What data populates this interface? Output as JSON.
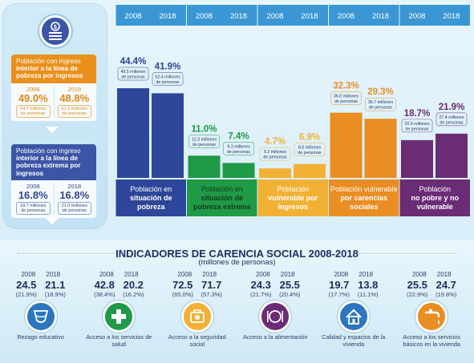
{
  "colors": {
    "dark_blue": "#2d4699",
    "green": "#1f9a46",
    "yellow": "#f2b134",
    "orange": "#ea8d22",
    "purple": "#6b2c76",
    "year_strip": "#3a97d3"
  },
  "summary_boxes": [
    {
      "color": "orange",
      "title_first": "Población con ingreso",
      "title_rest": "interior a la línea de pobreza por ingresos",
      "years": [
        "2008",
        "2018"
      ],
      "values": [
        "49.0%",
        "48.8%"
      ],
      "subs": [
        "54.7 millones de personas",
        "61.1 millones de personas"
      ]
    },
    {
      "color": "blue",
      "title_first": "Población con ingreso",
      "title_rest": "interior a la línea de pobreza extrema por ingresos",
      "years": [
        "2008",
        "2018"
      ],
      "values": [
        "16.8%",
        "16.8%"
      ],
      "subs": [
        "18.7 millones de personas",
        "21.0 millones de personas"
      ]
    }
  ],
  "chart_data": {
    "type": "bar",
    "unit": "%",
    "years": [
      "2008",
      "2018"
    ],
    "ylim": [
      0,
      50
    ],
    "groups": [
      {
        "label": "Población en situación de pobreza",
        "label_lines": [
          "Población en",
          "situación de",
          "pobreza"
        ],
        "values": [
          44.4,
          41.9
        ],
        "value_labels": [
          "44.4%",
          "41.9%"
        ],
        "people": [
          [
            "49.5 millones",
            "de personas"
          ],
          [
            "52.4 millones",
            "de personas"
          ]
        ],
        "color": "#2d4699",
        "text_color": "#ffffff"
      },
      {
        "label": "Población en situación de pobreza extrema",
        "label_lines": [
          "Población en",
          "situación de",
          "pobreza extrema"
        ],
        "values": [
          11.0,
          7.4
        ],
        "value_labels": [
          "11.0%",
          "7.4%"
        ],
        "people": [
          [
            "12.3 millones",
            "de personas"
          ],
          [
            "9.3 millones",
            "de personas"
          ]
        ],
        "color": "#1f9a46",
        "text_color": "#143a1f"
      },
      {
        "label": "Población vulnerable por ingresos",
        "label_lines": [
          "Población",
          "vulnerable por",
          "ingresos"
        ],
        "values": [
          4.7,
          6.9
        ],
        "value_labels": [
          "4.7%",
          "6.9%"
        ],
        "people": [
          [
            "5.2 millones",
            "de personas"
          ],
          [
            "8.6 millones",
            "de personas"
          ]
        ],
        "color": "#f2b134",
        "text_color": "#ffffff"
      },
      {
        "label": "Población vulnerable por carencias sociales",
        "label_lines": [
          "Población vulnerable",
          "por carencias",
          "sociales"
        ],
        "values": [
          32.3,
          29.3
        ],
        "value_labels": [
          "32.3%",
          "29.3%"
        ],
        "people": [
          [
            "36.0 millones",
            "de personas"
          ],
          [
            "36.7 millones",
            "de personas"
          ]
        ],
        "color": "#ea8d22",
        "text_color": "#ffffff"
      },
      {
        "label": "Población no pobre y no vulnerable",
        "label_lines": [
          "Población",
          "no pobre y no",
          "vulnerable"
        ],
        "values": [
          18.7,
          21.9
        ],
        "value_labels": [
          "18.7%",
          "21.9%"
        ],
        "people": [
          [
            "20.9 millones",
            "de personas"
          ],
          [
            "27.4 millones",
            "de personas"
          ]
        ],
        "color": "#6b2c76",
        "text_color": "#ffffff"
      }
    ]
  },
  "indicators": {
    "title": "INDICADORES DE CARENCIA SOCIAL 2008-2018",
    "subtitle": "(millones de personas)",
    "items": [
      {
        "label": "Rezago educativo",
        "label_lines": [
          "Rezago",
          "educativo"
        ],
        "years": [
          "2008",
          "2018"
        ],
        "values": [
          "24.5",
          "21.1"
        ],
        "pcts": [
          "(21.9%)",
          "(18.9%)"
        ],
        "icon": "education-icon",
        "color": "#2a76c0"
      },
      {
        "label": "Acceso a los servicios de salud",
        "label_lines": [
          "Acceso a los",
          "servicios de salud"
        ],
        "years": [
          "2008",
          "2018"
        ],
        "values": [
          "42.8",
          "20.2"
        ],
        "pcts": [
          "(38.4%)",
          "(16.2%)"
        ],
        "icon": "health-icon",
        "color": "#1e9a48"
      },
      {
        "label": "Acceso a la seguridad social",
        "label_lines": [
          "Acceso a la",
          "seguridad social"
        ],
        "years": [
          "2008",
          "2018"
        ],
        "values": [
          "72.5",
          "71.7"
        ],
        "pcts": [
          "(65.0%)",
          "(57.3%)"
        ],
        "icon": "social-security-icon",
        "color": "#f2b134"
      },
      {
        "label": "Acceso a la alimentación",
        "label_lines": [
          "Acceso a la",
          "alimentación"
        ],
        "years": [
          "2008",
          "2018"
        ],
        "values": [
          "24.3",
          "25.5"
        ],
        "pcts": [
          "(21.7%)",
          "(20.4%)"
        ],
        "icon": "food-icon",
        "color": "#6b2c76"
      },
      {
        "label": "Calidad y espacios de la vivienda",
        "label_lines": [
          "Calidad y espacios",
          "de la vivienda"
        ],
        "years": [
          "2008",
          "2018"
        ],
        "values": [
          "19.7",
          "13.8"
        ],
        "pcts": [
          "(17.7%)",
          "(11.1%)"
        ],
        "icon": "housing-icon",
        "color": "#2a76c0"
      },
      {
        "label": "Acceso a los servicios básicos en la vivienda",
        "label_lines": [
          "Acceso a los servicios",
          "básicos en la vivienda"
        ],
        "years": [
          "2008",
          "2018"
        ],
        "values": [
          "25.5",
          "24.7"
        ],
        "pcts": [
          "(22.9%)",
          "(19.8%)"
        ],
        "icon": "water-tap-icon",
        "color": "#ea8d22"
      }
    ]
  }
}
